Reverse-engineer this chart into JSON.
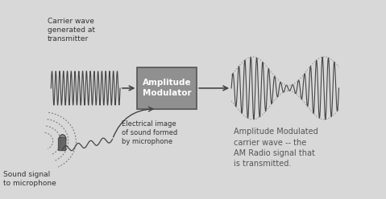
{
  "bg_color": "#d8d8d8",
  "box_text": "Amplitude\nModulator",
  "carrier_label": "Carrier wave\ngenerated at\ntransmitter",
  "am_label": "Amplitude Modulated\ncarrier wave -- the\nAM Radio signal that\nis transmitted.",
  "electrical_label": "Electrical image\nof sound formed\nby microphone",
  "sound_label": "Sound signal\nto microphone",
  "wave_color": "#444444",
  "dot_envelope_color": "#888888",
  "box_face": "#909090",
  "box_edge": "#555555",
  "figsize": [
    4.79,
    2.48
  ],
  "dpi": 100
}
